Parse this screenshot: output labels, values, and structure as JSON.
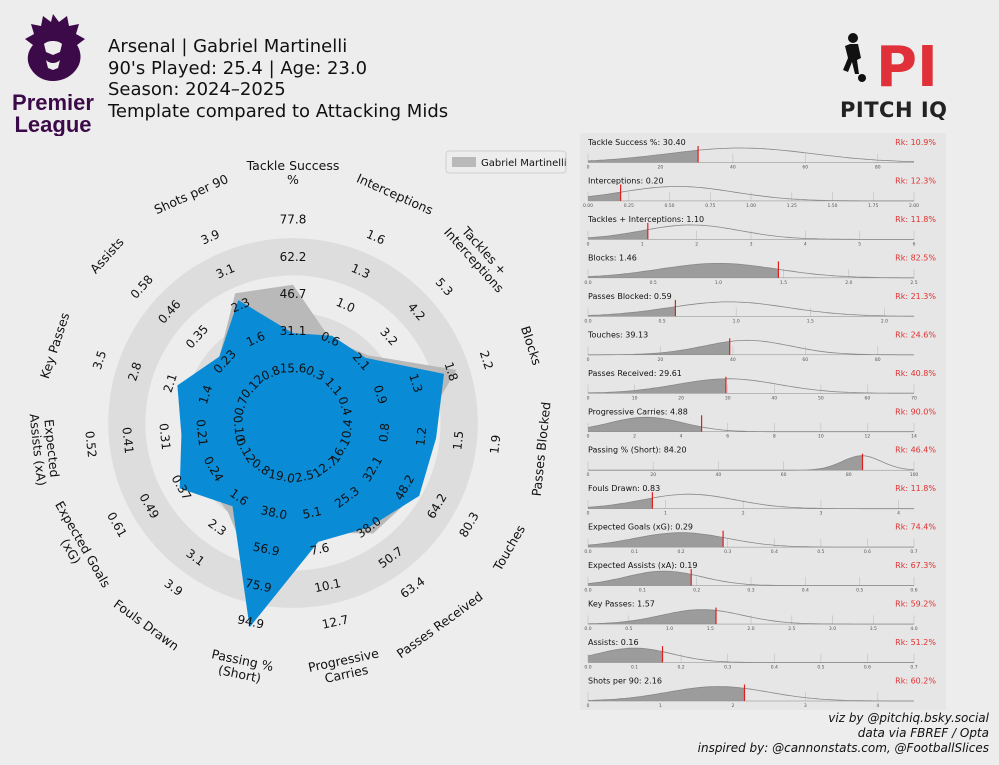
{
  "header": {
    "line1": "Arsenal | Gabriel Martinelli",
    "line2": "90's Played: 25.4 | Age: 23.0",
    "line3": "Season: 2024–2025",
    "line4": "Template compared to Attacking Mids"
  },
  "logos": {
    "league_line1": "Premier",
    "league_line2": "League",
    "brand_mark": "PI",
    "brand_name_a": "PITCH",
    "brand_name_b": "IQ"
  },
  "colors": {
    "player_fill": "#0a8bd6",
    "template_fill": "#b9b9b9",
    "ring": "#dddddd",
    "marker": "#e02020",
    "rank": "#e03030",
    "dist_fill": "#9c9c9c"
  },
  "footer": {
    "line1": "viz by @pitchiq.bsky.social",
    "line2": "data via FBREF / Opta",
    "line3": "inspired by: @cannonstats.com, @FootballSlices"
  },
  "chart_data": [
    {
      "type": "radar",
      "legend": "Gabriel Martinelli",
      "legend_position": "top-right",
      "categories": [
        {
          "label": "Tackle Success\n%",
          "ticks": [
            "15.6",
            "31.1",
            "46.7",
            "62.2",
            "77.8"
          ],
          "player_pct": 0.29,
          "template_pct": 0.55
        },
        {
          "label": "Interceptions",
          "ticks": [
            "0.3",
            "0.6",
            "1.0",
            "1.3",
            "1.6"
          ],
          "player_pct": 0.32,
          "template_pct": 0.3
        },
        {
          "label": "Tackles +\nInterceptions",
          "ticks": [
            "1.1",
            "2.1",
            "3.2",
            "4.2",
            "5.3"
          ],
          "player_pct": 0.33,
          "template_pct": 0.35
        },
        {
          "label": "Blocks",
          "ticks": [
            "0.4",
            "0.9",
            "1.3",
            "1.8",
            "2.2"
          ],
          "player_pct": 0.66,
          "template_pct": 0.73
        },
        {
          "label": "Passes Blocked",
          "ticks": [
            "0.4",
            "0.8",
            "1.2",
            "1.5",
            "1.9"
          ],
          "player_pct": 0.58,
          "template_pct": 0.48
        },
        {
          "label": "Touches",
          "ticks": [
            "16.1",
            "32.1",
            "48.2",
            "64.2",
            "80.3"
          ],
          "player_pct": 0.59,
          "template_pct": 0.57
        },
        {
          "label": "Passes Received",
          "ticks": [
            "12.7",
            "25.3",
            "38.0",
            "50.7",
            "63.4"
          ],
          "player_pct": 0.5,
          "template_pct": 0.54
        },
        {
          "label": "Progressive\nCarries",
          "ticks": [
            "2.5",
            "5.1",
            "7.6",
            "10.1",
            "12.7"
          ],
          "player_pct": 0.46,
          "template_pct": 0.41
        },
        {
          "label": "Passing %\n(Short)",
          "ticks": [
            "19.0",
            "38.0",
            "56.9",
            "75.9",
            "94.9"
          ],
          "player_pct": 0.93,
          "template_pct": 0.7
        },
        {
          "label": "Fouls Drawn",
          "ticks": [
            "0.8",
            "1.6",
            "2.3",
            "3.1",
            "3.9"
          ],
          "player_pct": 0.36,
          "template_pct": 0.4
        },
        {
          "label": "Expected Goals\n(xG)",
          "ticks": [
            "0.12",
            "0.24",
            "0.37",
            "0.49",
            "0.61"
          ],
          "player_pct": 0.51,
          "template_pct": 0.38
        },
        {
          "label": "Expected\nAssists (xA)",
          "ticks": [
            "0.10",
            "0.21",
            "0.31",
            "0.41",
            "0.52"
          ],
          "player_pct": 0.41,
          "template_pct": 0.27
        },
        {
          "label": "Key Passes",
          "ticks": [
            "0.7",
            "1.4",
            "2.1",
            "2.8",
            "3.5"
          ],
          "player_pct": 0.46,
          "template_pct": 0.33
        },
        {
          "label": "Assists",
          "ticks": [
            "0.12",
            "0.23",
            "0.35",
            "0.46",
            "0.58"
          ],
          "player_pct": 0.34,
          "template_pct": 0.34
        },
        {
          "label": "Shots per 90",
          "ticks": [
            "0.8",
            "1.6",
            "2.3",
            "3.1",
            "3.9"
          ],
          "player_pct": 0.53,
          "template_pct": 0.57
        }
      ]
    },
    {
      "type": "area",
      "subtype": "distribution-strips",
      "series": [
        {
          "label": "Tackle Success %: 30.40",
          "rank": "Rk: 10.9%",
          "ticks": [
            "0",
            "20",
            "40",
            "60",
            "80"
          ],
          "xlim": [
            0,
            90
          ],
          "value": 30.4,
          "peak": 42,
          "width": 20
        },
        {
          "label": "Interceptions: 0.20",
          "rank": "Rk: 12.3%",
          "ticks": [
            "0.00",
            "0.25",
            "0.50",
            "0.75",
            "1.00",
            "1.25",
            "1.50",
            "1.75",
            "2.00"
          ],
          "xlim": [
            0,
            2
          ],
          "value": 0.2,
          "peak": 0.55,
          "width": 0.35
        },
        {
          "label": "Tackles + Interceptions: 1.10",
          "rank": "Rk: 11.8%",
          "ticks": [
            "0",
            "1",
            "2",
            "3",
            "4",
            "5",
            "6"
          ],
          "xlim": [
            0,
            6
          ],
          "value": 1.1,
          "peak": 1.9,
          "width": 0.9
        },
        {
          "label": "Blocks: 1.46",
          "rank": "Rk: 82.5%",
          "ticks": [
            "0.0",
            "0.5",
            "1.0",
            "1.5",
            "2.0",
            "2.5"
          ],
          "xlim": [
            0,
            2.5
          ],
          "value": 1.46,
          "peak": 1.0,
          "width": 0.45
        },
        {
          "label": "Passes Blocked: 0.59",
          "rank": "Rk: 21.3%",
          "ticks": [
            "0.0",
            "0.5",
            "1.0",
            "1.5",
            "2.0"
          ],
          "xlim": [
            0,
            2.2
          ],
          "value": 0.59,
          "peak": 0.95,
          "width": 0.4
        },
        {
          "label": "Touches: 39.13",
          "rank": "Rk: 24.6%",
          "ticks": [
            "0",
            "20",
            "40",
            "60",
            "80"
          ],
          "xlim": [
            0,
            90
          ],
          "value": 39.13,
          "peak": 44,
          "width": 12
        },
        {
          "label": "Passes Received: 29.61",
          "rank": "Rk: 40.8%",
          "ticks": [
            "0",
            "10",
            "20",
            "30",
            "40",
            "50",
            "60",
            "70"
          ],
          "xlim": [
            0,
            70
          ],
          "value": 29.61,
          "peak": 30,
          "width": 11
        },
        {
          "label": "Progressive Carries: 4.88",
          "rank": "Rk: 90.0%",
          "ticks": [
            "0",
            "2",
            "4",
            "6",
            "8",
            "10",
            "12",
            "14"
          ],
          "xlim": [
            0,
            14
          ],
          "value": 4.88,
          "peak": 2.5,
          "width": 1.6
        },
        {
          "label": "Passing % (Short): 84.20",
          "rank": "Rk: 46.4%",
          "ticks": [
            "0",
            "20",
            "40",
            "60",
            "80",
            "100"
          ],
          "xlim": [
            0,
            100
          ],
          "value": 84.2,
          "peak": 84,
          "width": 6
        },
        {
          "label": "Fouls Drawn: 0.83",
          "rank": "Rk: 11.8%",
          "ticks": [
            "0",
            "1",
            "2",
            "3",
            "4"
          ],
          "xlim": [
            0,
            4.2
          ],
          "value": 0.83,
          "peak": 1.3,
          "width": 0.6
        },
        {
          "label": "Expected Goals (xG): 0.29",
          "rank": "Rk: 74.4%",
          "ticks": [
            "0.0",
            "0.1",
            "0.2",
            "0.3",
            "0.4",
            "0.5",
            "0.6",
            "0.7"
          ],
          "xlim": [
            0,
            0.7
          ],
          "value": 0.29,
          "peak": 0.2,
          "width": 0.1
        },
        {
          "label": "Expected Assists (xA): 0.19",
          "rank": "Rk: 67.3%",
          "ticks": [
            "0.0",
            "0.1",
            "0.2",
            "0.3",
            "0.4",
            "0.5",
            "0.6"
          ],
          "xlim": [
            0,
            0.6
          ],
          "value": 0.19,
          "peak": 0.14,
          "width": 0.07
        },
        {
          "label": "Key Passes: 1.57",
          "rank": "Rk: 59.2%",
          "ticks": [
            "0.0",
            "0.5",
            "1.0",
            "1.5",
            "2.0",
            "2.5",
            "3.0",
            "3.5",
            "4.0"
          ],
          "xlim": [
            0,
            4
          ],
          "value": 1.57,
          "peak": 1.4,
          "width": 0.5
        },
        {
          "label": "Assists: 0.16",
          "rank": "Rk: 51.2%",
          "ticks": [
            "0.0",
            "0.1",
            "0.2",
            "0.3",
            "0.4",
            "0.5",
            "0.6",
            "0.7"
          ],
          "xlim": [
            0,
            0.7
          ],
          "value": 0.16,
          "peak": 0.1,
          "width": 0.08
        },
        {
          "label": "Shots per 90: 2.16",
          "rank": "Rk: 60.2%",
          "ticks": [
            "0",
            "1",
            "2",
            "3",
            "4"
          ],
          "xlim": [
            0,
            4.5
          ],
          "value": 2.16,
          "peak": 1.8,
          "width": 0.7
        }
      ]
    }
  ]
}
